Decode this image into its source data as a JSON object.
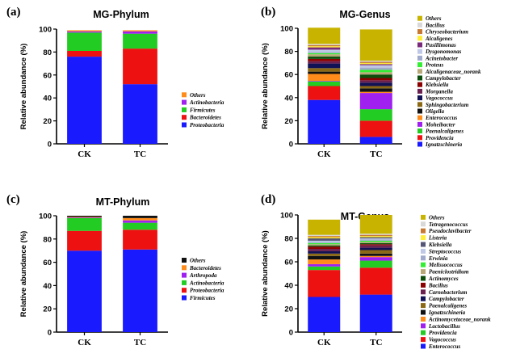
{
  "chart_data": [
    {
      "panel": "(a)",
      "type": "bar",
      "stacked": true,
      "title": "MG-Phylum",
      "ylabel": "Relative abundance (%)",
      "ylim": [
        0,
        100
      ],
      "yticks": [
        0,
        20,
        40,
        60,
        80,
        100
      ],
      "categories": [
        "CK",
        "TC"
      ],
      "legend_position": "right",
      "series": [
        {
          "name": "Proteobacteria",
          "color": "#1a1aff",
          "values": [
            76,
            52
          ]
        },
        {
          "name": "Bacteroidetes",
          "color": "#ee1111",
          "values": [
            5,
            31
          ]
        },
        {
          "name": "Firmicutes",
          "color": "#22cc22",
          "values": [
            16,
            13
          ]
        },
        {
          "name": "Actinobacteria",
          "color": "#a020f0",
          "values": [
            1,
            2
          ]
        },
        {
          "name": "Others",
          "color": "#ff8c1a",
          "values": [
            1,
            1
          ]
        }
      ]
    },
    {
      "panel": "(b)",
      "type": "bar",
      "stacked": true,
      "title": "MG-Genus",
      "ylabel": "Relative abundance (%)",
      "ylim": [
        0,
        100
      ],
      "yticks": [
        0,
        20,
        40,
        60,
        80,
        100
      ],
      "categories": [
        "CK",
        "TC"
      ],
      "legend_position": "right",
      "series": [
        {
          "name": "Ignatzschineria",
          "color": "#1a1aff",
          "values": [
            38,
            6
          ]
        },
        {
          "name": "Providencia",
          "color": "#ee1111",
          "values": [
            12,
            14
          ]
        },
        {
          "name": "Paenalcaligenes",
          "color": "#22cc22",
          "values": [
            4,
            10
          ]
        },
        {
          "name": "Moheibacter",
          "color": "#a020f0",
          "values": [
            0.5,
            14
          ]
        },
        {
          "name": "Enterococcus",
          "color": "#ff8c1a",
          "values": [
            6,
            1
          ]
        },
        {
          "name": "Oligella",
          "color": "#111111",
          "values": [
            2,
            3
          ]
        },
        {
          "name": "Sphingobacterium",
          "color": "#8b6914",
          "values": [
            3,
            2
          ]
        },
        {
          "name": "Vagococcus",
          "color": "#111155",
          "values": [
            4,
            3
          ]
        },
        {
          "name": "Morganella",
          "color": "#6b2150",
          "values": [
            2,
            2
          ]
        },
        {
          "name": "Klebsiella",
          "color": "#8b0000",
          "values": [
            2,
            2
          ]
        },
        {
          "name": "Campylobacter",
          "color": "#0b4d0b",
          "values": [
            2,
            3
          ]
        },
        {
          "name": "Alcaligenaceae_norank",
          "color": "#b8a878",
          "values": [
            2,
            2
          ]
        },
        {
          "name": "Proteus",
          "color": "#33ee33",
          "values": [
            1,
            2
          ]
        },
        {
          "name": "Acinetobacter",
          "color": "#a0aacc",
          "values": [
            1,
            2
          ]
        },
        {
          "name": "Dysgonomonas",
          "color": "#c0c8e8",
          "values": [
            2,
            2
          ]
        },
        {
          "name": "Pusillimonas",
          "color": "#7a2a7a",
          "values": [
            2,
            1
          ]
        },
        {
          "name": "Alcaligenes",
          "color": "#ffee33",
          "values": [
            1,
            1
          ]
        },
        {
          "name": "Chryseobacterium",
          "color": "#c87830",
          "values": [
            1,
            1
          ]
        },
        {
          "name": "Bacillus",
          "color": "#d8d8d8",
          "values": [
            1,
            1
          ]
        },
        {
          "name": "Others",
          "color": "#c8b400",
          "values": [
            14,
            27
          ]
        }
      ]
    },
    {
      "panel": "(c)",
      "type": "bar",
      "stacked": true,
      "title": "MT-Phylum",
      "ylabel": "Relative abundance (%)",
      "ylim": [
        0,
        100
      ],
      "yticks": [
        0,
        20,
        40,
        60,
        80,
        100
      ],
      "categories": [
        "CK",
        "TC"
      ],
      "legend_position": "right",
      "series": [
        {
          "name": "Firmicutes",
          "color": "#1a1aff",
          "values": [
            70,
            71
          ]
        },
        {
          "name": "Proteobacteria",
          "color": "#ee1111",
          "values": [
            17,
            17
          ]
        },
        {
          "name": "Actinobacteria",
          "color": "#22cc22",
          "values": [
            11,
            6
          ]
        },
        {
          "name": "Arthropoda",
          "color": "#a020f0",
          "values": [
            0.5,
            2
          ]
        },
        {
          "name": "Bacteroidetes",
          "color": "#ff8c1a",
          "values": [
            0.5,
            2
          ]
        },
        {
          "name": "Others",
          "color": "#111111",
          "values": [
            1,
            2
          ]
        }
      ]
    },
    {
      "panel": "(d)",
      "type": "bar",
      "stacked": true,
      "title": "MT-Genus",
      "ylabel": "Relative abundance (%)",
      "ylim": [
        0,
        100
      ],
      "yticks": [
        0,
        20,
        40,
        60,
        80,
        100
      ],
      "categories": [
        "CK",
        "TC"
      ],
      "legend_position": "right",
      "series": [
        {
          "name": "Enterococcus",
          "color": "#1a1aff",
          "values": [
            30,
            32
          ]
        },
        {
          "name": "Vagococcus",
          "color": "#ee1111",
          "values": [
            23,
            23
          ]
        },
        {
          "name": "Providencia",
          "color": "#22cc22",
          "values": [
            3,
            6
          ]
        },
        {
          "name": "Lactobacillus",
          "color": "#a020f0",
          "values": [
            2,
            3
          ]
        },
        {
          "name": "Actinomycetaceae_norank",
          "color": "#ff8c1a",
          "values": [
            4,
            1
          ]
        },
        {
          "name": "Ignatzschineria",
          "color": "#111111",
          "values": [
            3,
            2
          ]
        },
        {
          "name": "Paenalcaligenes",
          "color": "#8b6914",
          "values": [
            2,
            3
          ]
        },
        {
          "name": "Campylobacter",
          "color": "#111155",
          "values": [
            2,
            2
          ]
        },
        {
          "name": "Carnobacterium",
          "color": "#6b2150",
          "values": [
            2,
            2
          ]
        },
        {
          "name": "Bacillus",
          "color": "#8b0000",
          "values": [
            2,
            1
          ]
        },
        {
          "name": "Actinomyces",
          "color": "#0b4d0b",
          "values": [
            1,
            1
          ]
        },
        {
          "name": "Paeniclostridium",
          "color": "#b8a878",
          "values": [
            1,
            1
          ]
        },
        {
          "name": "Melissococcus",
          "color": "#33ee33",
          "values": [
            1,
            1
          ]
        },
        {
          "name": "Erwinia",
          "color": "#a0aacc",
          "values": [
            1,
            1
          ]
        },
        {
          "name": "Streptococcus",
          "color": "#c0c8e8",
          "values": [
            1,
            1
          ]
        },
        {
          "name": "Klebsiella",
          "color": "#555577",
          "values": [
            2,
            1
          ]
        },
        {
          "name": "Listeria",
          "color": "#ffee33",
          "values": [
            1,
            1
          ]
        },
        {
          "name": "Pseudoclavibacter",
          "color": "#c87830",
          "values": [
            1,
            1
          ]
        },
        {
          "name": "Tetragenococcus",
          "color": "#d8d8d8",
          "values": [
            1,
            1
          ]
        },
        {
          "name": "Others",
          "color": "#c8b400",
          "values": [
            13,
            16
          ]
        }
      ]
    }
  ]
}
